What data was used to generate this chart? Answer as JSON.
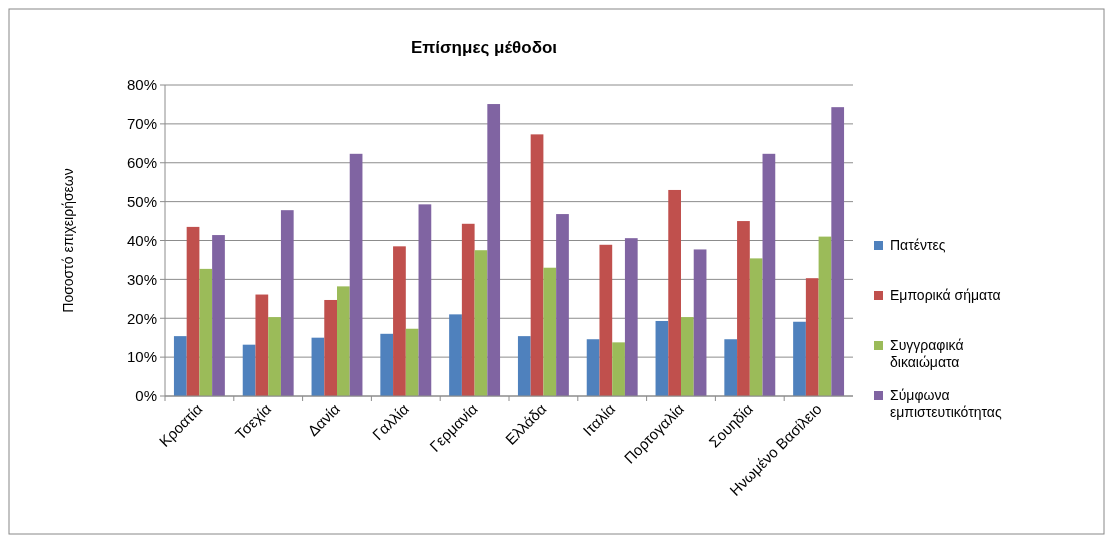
{
  "chart_data": {
    "type": "bar",
    "title": "Επίσημες μέθοδοι",
    "ylabel": "Ποσοστό επιχειρήσεων",
    "categories": [
      "Κροατία",
      "Τσεχία",
      "Δανία",
      "Γαλλία",
      "Γερμανία",
      "Ελλάδα",
      "Ιταλία",
      "Πορτογαλία",
      "Σουηδία",
      "Ηνωμένο Βασίλειο"
    ],
    "series": [
      {
        "name": "Πατέντες",
        "color": "#4f81bd",
        "values": [
          15.4,
          13.2,
          15.0,
          16.0,
          21.0,
          15.4,
          14.6,
          19.3,
          14.6,
          19.1
        ]
      },
      {
        "name": "Εμπορικά σήματα",
        "color": "#c0504d",
        "values": [
          43.5,
          26.1,
          24.7,
          38.5,
          44.3,
          67.3,
          38.9,
          53.0,
          45.0,
          30.3
        ]
      },
      {
        "name": "Συγγραφικά δικαιώματα",
        "color": "#9bbb59",
        "values": [
          32.7,
          20.3,
          28.2,
          17.3,
          37.5,
          33.0,
          13.8,
          20.3,
          35.4,
          41.0
        ]
      },
      {
        "name": "Σύμφωνα εμπιστευτικότητας",
        "color": "#8064a2",
        "values": [
          41.4,
          47.8,
          62.3,
          49.3,
          75.1,
          46.8,
          40.6,
          37.7,
          62.3,
          74.3
        ]
      }
    ],
    "ylim": [
      0,
      80
    ],
    "yticks": [
      {
        "value": 0,
        "label": "0%"
      },
      {
        "value": 10,
        "label": "10%"
      },
      {
        "value": 20,
        "label": "20%"
      },
      {
        "value": 30,
        "label": "30%"
      },
      {
        "value": 40,
        "label": "40%"
      },
      {
        "value": 50,
        "label": "50%"
      },
      {
        "value": 60,
        "label": "60%"
      },
      {
        "value": 70,
        "label": "70%"
      },
      {
        "value": 80,
        "label": "80%"
      }
    ],
    "grid": "y",
    "legend": "right"
  }
}
